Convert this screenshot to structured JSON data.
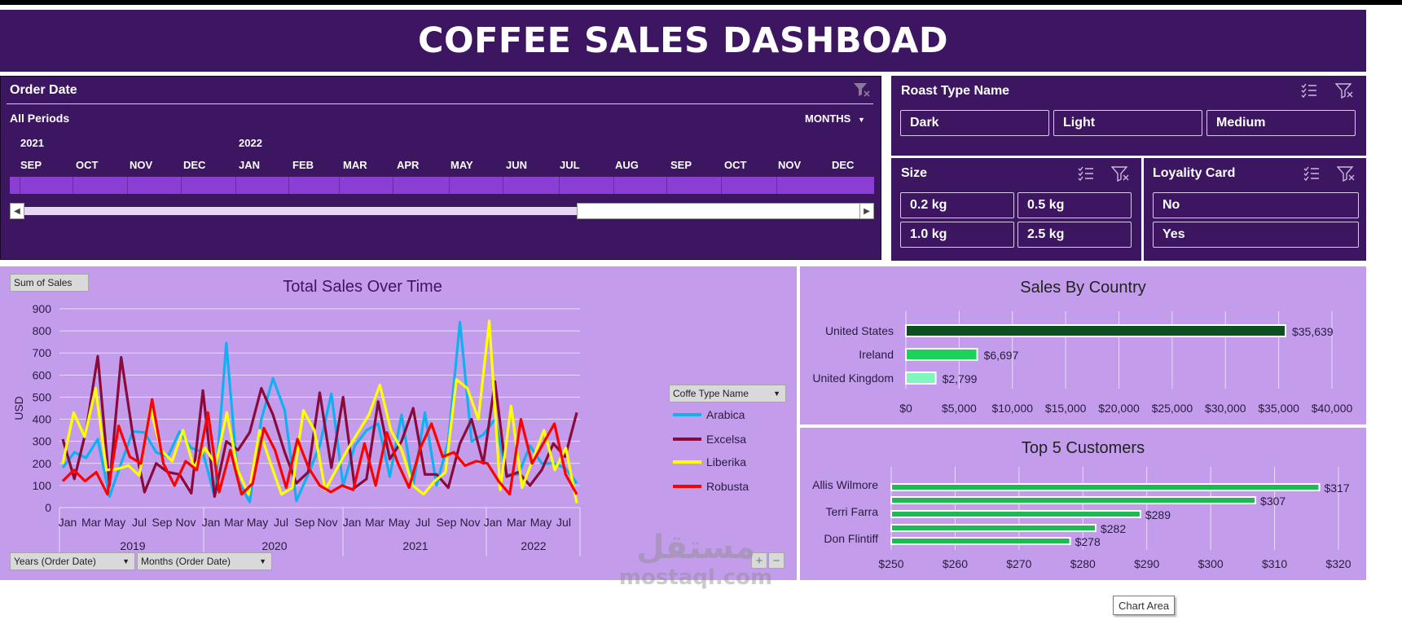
{
  "dashboard_title": "COFFEE SALES DASHBOAD",
  "order_date": {
    "title": "Order Date",
    "period_label": "All Periods",
    "level_label": "MONTHS",
    "years": [
      "2021",
      "2022"
    ],
    "months": [
      "SEP",
      "OCT",
      "NOV",
      "DEC",
      "JAN",
      "FEB",
      "MAR",
      "APR",
      "MAY",
      "JUN",
      "JUL",
      "AUG",
      "SEP",
      "OCT",
      "NOV",
      "DEC"
    ]
  },
  "roast": {
    "title": "Roast Type Name",
    "options": [
      "Dark",
      "Light",
      "Medium"
    ]
  },
  "size": {
    "title": "Size",
    "options": [
      "0.2 kg",
      "0.5 kg",
      "1.0 kg",
      "2.5 kg"
    ]
  },
  "loyalty": {
    "title": "Loyality Card",
    "options": [
      "No",
      "Yes"
    ]
  },
  "pivot": {
    "sum_label": "Sum of Sales",
    "legend_field": "Coffe Type Name",
    "years_field": "Years (Order Date)",
    "months_field": "Months (Order Date)"
  },
  "tooltip": "Chart Area",
  "watermark": {
    "arabic": "مستقل",
    "latin": "mostaql.com"
  },
  "colors": {
    "panel": "#3c1660",
    "chart_bg": "#c39deb",
    "arabica": "#12b0f0",
    "excelsa": "#8b0a3c",
    "liberika": "#ffff00",
    "robusta": "#ff0000"
  },
  "chart_data": [
    {
      "type": "line",
      "title": "Total Sales Over Time",
      "ylabel": "USD",
      "ylim": [
        0,
        900
      ],
      "yticks": [
        0,
        100,
        200,
        300,
        400,
        500,
        600,
        700,
        800,
        900
      ],
      "x_tick_labels": [
        "Jan",
        "Mar",
        "May",
        "Jul",
        "Sep",
        "Nov",
        "Jan",
        "Mar",
        "May",
        "Jul",
        "Sep",
        "Nov",
        "Jan",
        "Mar",
        "May",
        "Jul",
        "Sep",
        "Nov",
        "Jan",
        "Mar",
        "May",
        "Jul"
      ],
      "year_labels": [
        "2019",
        "2020",
        "2021",
        "2022"
      ],
      "grid": true,
      "legend": "right",
      "series": [
        {
          "name": "Arabica",
          "color": "#12b0f0",
          "values": [
            180,
            250,
            225,
            310,
            50,
            200,
            345,
            340,
            250,
            230,
            345,
            270,
            250,
            50,
            745,
            125,
            25,
            400,
            585,
            440,
            30,
            150,
            280,
            515,
            100,
            280,
            350,
            380,
            140,
            420,
            100,
            430,
            100,
            300,
            840,
            300,
            330,
            400,
            150,
            150,
            280,
            200,
            200,
            180,
            110
          ]
        },
        {
          "name": "Excelsa",
          "color": "#8b0a3c",
          "values": [
            310,
            130,
            350,
            685,
            100,
            680,
            330,
            70,
            200,
            160,
            150,
            65,
            530,
            50,
            300,
            260,
            340,
            540,
            420,
            250,
            110,
            160,
            520,
            180,
            500,
            90,
            130,
            480,
            220,
            300,
            450,
            150,
            150,
            90,
            290,
            400,
            200,
            570,
            140,
            160,
            100,
            170,
            290,
            230,
            430
          ]
        },
        {
          "name": "Liberika",
          "color": "#ffff00",
          "values": [
            200,
            430,
            320,
            540,
            170,
            175,
            190,
            145,
            450,
            260,
            210,
            350,
            180,
            270,
            195,
            430,
            170,
            60,
            350,
            200,
            60,
            90,
            440,
            350,
            80,
            170,
            260,
            340,
            420,
            555,
            350,
            260,
            100,
            60,
            120,
            160,
            580,
            540,
            400,
            845,
            80,
            460,
            90,
            220,
            350,
            170,
            270,
            20
          ]
        },
        {
          "name": "Robusta",
          "color": "#ff0000",
          "values": [
            120,
            170,
            120,
            160,
            60,
            370,
            230,
            200,
            490,
            200,
            100,
            210,
            170,
            430,
            70,
            260,
            60,
            110,
            360,
            260,
            90,
            310,
            180,
            100,
            70,
            100,
            80,
            290,
            100,
            340,
            200,
            90,
            270,
            380,
            230,
            250,
            190,
            210,
            200,
            120,
            60,
            400,
            200,
            290,
            380,
            150,
            60
          ]
        }
      ]
    },
    {
      "type": "bar",
      "title": "Sales By Country",
      "categories": [
        "United States",
        "Ireland",
        "United Kingdom"
      ],
      "values": [
        35639,
        6697,
        2799
      ],
      "value_labels": [
        "$35,639",
        "$6,697",
        "$2,799"
      ],
      "xlim": [
        0,
        40000
      ],
      "x_tick_labels": [
        "$0",
        "$5,000",
        "$10,000",
        "$15,000",
        "$20,000",
        "$25,000",
        "$30,000",
        "$35,000",
        "$40,000"
      ],
      "colors": [
        "#0b4f22",
        "#1dd25a",
        "#7ff5c0"
      ]
    },
    {
      "type": "bar",
      "title": "Top 5 Customers",
      "categories": [
        "Allis Wilmore",
        "",
        "Terri Farra",
        "",
        "Don Flintiff"
      ],
      "values": [
        317,
        307,
        289,
        282,
        278
      ],
      "value_labels": [
        "$317",
        "$307",
        "$289",
        "$282",
        "$278"
      ],
      "xlim": [
        250,
        320
      ],
      "x_tick_labels": [
        "$250",
        "$260",
        "$270",
        "$280",
        "$290",
        "$300",
        "$310",
        "$320"
      ],
      "colors": [
        "#1db954"
      ]
    }
  ]
}
